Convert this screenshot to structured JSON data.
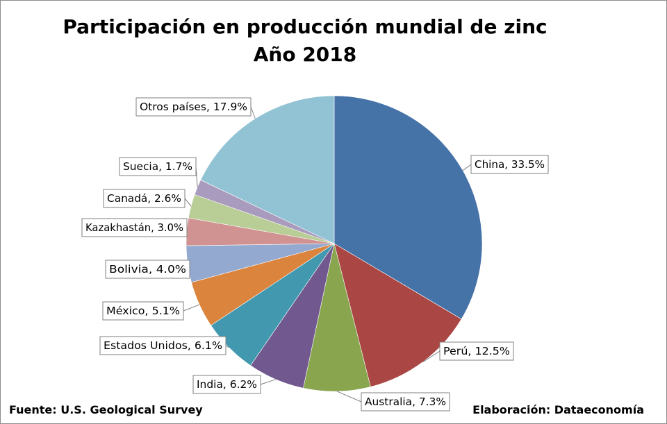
{
  "chart_data": {
    "type": "pie",
    "title": "Participación en producción mundial de zinc",
    "subtitle": "Año 2018",
    "slices": [
      {
        "label": "China",
        "value": 33.5,
        "display": "China, 33.5%",
        "color": "#4572A7"
      },
      {
        "label": "Perú",
        "value": 12.5,
        "display": "Perú, 12.5%",
        "color": "#AA4643"
      },
      {
        "label": "Australia",
        "value": 7.3,
        "display": "Australia, 7.3%",
        "color": "#89A54E"
      },
      {
        "label": "India",
        "value": 6.2,
        "display": "India, 6.2%",
        "color": "#71588F"
      },
      {
        "label": "Estados Unidos",
        "value": 6.1,
        "display": "Estados Unidos, 6.1%",
        "color": "#4198AF"
      },
      {
        "label": "México",
        "value": 5.1,
        "display": "México, 5.1%",
        "color": "#DB843D"
      },
      {
        "label": "Bolivia",
        "value": 4.0,
        "display": "Bolivia, 4.0%",
        "color": "#93A9CF"
      },
      {
        "label": "Kazakhastán",
        "value": 3.0,
        "display": "Kazakhastán, 3.0%",
        "color": "#D19392"
      },
      {
        "label": "Canadá",
        "value": 2.6,
        "display": "Canadá, 2.6%",
        "color": "#B9CD96"
      },
      {
        "label": "Suecia",
        "value": 1.7,
        "display": "Suecia, 1.7%",
        "color": "#A99BBD"
      },
      {
        "label": "Otros países",
        "value": 17.9,
        "display": "Otros países, 17.9%",
        "color": "#92C3D4"
      }
    ]
  },
  "footer": {
    "source": "Fuente: U.S. Geological Survey",
    "credit": "Elaboración: Dataeconomía"
  }
}
